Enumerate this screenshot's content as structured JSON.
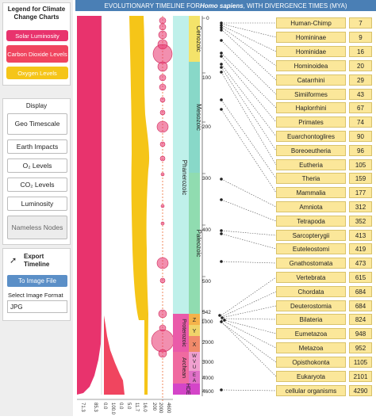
{
  "legend": {
    "title": "Legend for Climate Change Charts",
    "items": [
      {
        "label": "Solar Luminosity",
        "color": "#e8336d"
      },
      {
        "label": "Carbon Dioxide Levels",
        "color": "#f0455f"
      },
      {
        "label": "Oxygen Levels",
        "color": "#f5c518"
      }
    ]
  },
  "display": {
    "title": "Display",
    "buttons": [
      "Geo Timescale",
      "Earth Impacts",
      "O₂ Levels",
      "CO₂ Levels",
      "Luminosity",
      "Nameless Nodes"
    ]
  },
  "export": {
    "title": "Export Timeline",
    "button": "To Image File",
    "format_label": "Select Image Format",
    "format_value": "JPG"
  },
  "header": {
    "title_prefix": "EVOLUTIONARY TIMELINE FOR ",
    "title_species": "Homo sapiens",
    "title_suffix": ", WITH DIVERGENCE TIMES (MYA)"
  },
  "timeline": {
    "ticks": [
      "0",
      "100",
      "200",
      "300",
      "400",
      "500",
      "542",
      "1000",
      "2000",
      "3000",
      "4000",
      "4600"
    ],
    "eras": [
      {
        "label": "Cenozoic",
        "color": "#f4e36a"
      },
      {
        "label": "Mesozoic",
        "color": "#88d8c8"
      },
      {
        "label": "Paleozoic",
        "color": "#90dcb0"
      },
      {
        "label": "Phanerozoic",
        "color": "#bff0ea"
      },
      {
        "label": "Proterozoic",
        "color": "#ea5aa9"
      },
      {
        "label": "Archean",
        "color": "#f06aa0"
      },
      {
        "label": "HDE",
        "color": "#d445c8"
      }
    ],
    "sub_periods": [
      "Z",
      "Y",
      "X",
      "W",
      "V",
      "U",
      "E",
      "A"
    ],
    "bottom_labels": [
      "71.3",
      "85.3",
      "0.0",
      "100.0",
      "0.0",
      "5.0",
      "11.7",
      "16.0",
      "200",
      "2000",
      "4600"
    ]
  },
  "results": [
    {
      "name": "Human-Chimp",
      "value": "7"
    },
    {
      "name": "Homininae",
      "value": "9"
    },
    {
      "name": "Hominidae",
      "value": "16"
    },
    {
      "name": "Hominoidea",
      "value": "20"
    },
    {
      "name": "Catarrhini",
      "value": "29"
    },
    {
      "name": "Simiiformes",
      "value": "43"
    },
    {
      "name": "Haplorrhini",
      "value": "67"
    },
    {
      "name": "Primates",
      "value": "74"
    },
    {
      "name": "Euarchontoglires",
      "value": "90"
    },
    {
      "name": "Boreoeutheria",
      "value": "96"
    },
    {
      "name": "Eutheria",
      "value": "105"
    },
    {
      "name": "Theria",
      "value": "159"
    },
    {
      "name": "Mammalia",
      "value": "177"
    },
    {
      "name": "Amniota",
      "value": "312"
    },
    {
      "name": "Tetrapoda",
      "value": "352"
    },
    {
      "name": "Sarcopterygii",
      "value": "413"
    },
    {
      "name": "Euteleostomi",
      "value": "419"
    },
    {
      "name": "Gnathostomata",
      "value": "473"
    },
    {
      "name": "Vertebrata",
      "value": "615"
    },
    {
      "name": "Chordata",
      "value": "684"
    },
    {
      "name": "Deuterostomia",
      "value": "684"
    },
    {
      "name": "Bilateria",
      "value": "824"
    },
    {
      "name": "Eumetazoa",
      "value": "948"
    },
    {
      "name": "Metazoa",
      "value": "952"
    },
    {
      "name": "Opisthokonta",
      "value": "1105"
    },
    {
      "name": "Eukaryota",
      "value": "2101"
    },
    {
      "name": "cellular organisms",
      "value": "4290"
    }
  ]
}
